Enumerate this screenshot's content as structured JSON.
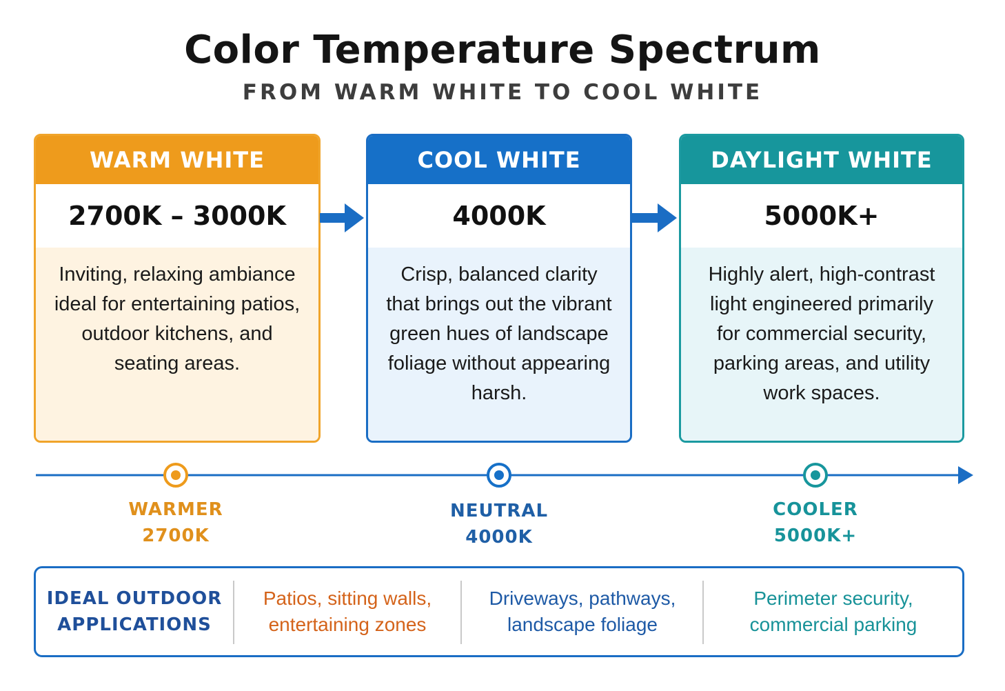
{
  "title": "Color Temperature Spectrum",
  "subtitle": "FROM WARM WHITE TO COOL WHITE",
  "colors": {
    "warm": "#ee9b1c",
    "cool": "#1670c8",
    "daylight": "#17969c",
    "timeline": "#1a6dc4"
  },
  "cards": [
    {
      "name": "WARM WHITE",
      "range": "2700K – 3000K",
      "description": "Inviting, relaxing ambiance ideal for entertaining patios, outdoor kitchens, and seating areas."
    },
    {
      "name": "COOL WHITE",
      "range": "4000K",
      "description": "Crisp, balanced clarity that brings out the vibrant green hues of landscape foliage without appearing harsh."
    },
    {
      "name": "DAYLIGHT WHITE",
      "range": "5000K+",
      "description": "Highly alert, high-contrast light engineered primarily for commercial security, parking areas, and utility work spaces."
    }
  ],
  "scale": [
    {
      "label": "WARMER",
      "value": "2700K"
    },
    {
      "label": "NEUTRAL",
      "value": "4000K"
    },
    {
      "label": "COOLER",
      "value": "5000K+"
    }
  ],
  "applications": {
    "heading_line1": "IDEAL OUTDOOR",
    "heading_line2": "APPLICATIONS",
    "warm_line1": "Patios, sitting walls,",
    "warm_line2": "entertaining zones",
    "neutral_line1": "Driveways, pathways,",
    "neutral_line2": "landscape foliage",
    "cool_line1": "Perimeter security,",
    "cool_line2": "commercial parking"
  }
}
